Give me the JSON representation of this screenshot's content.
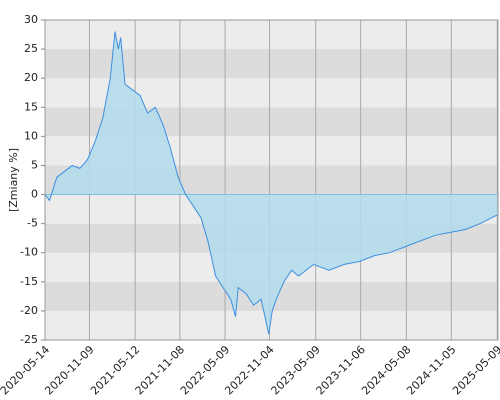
{
  "chart_data": {
    "type": "area",
    "y_label": "[Zmiany %]",
    "x": [
      "2020-05-14",
      "2020-06-01",
      "2020-07-01",
      "2020-08-01",
      "2020-09-01",
      "2020-10-01",
      "2020-11-01",
      "2020-12-01",
      "2021-01-01",
      "2021-02-01",
      "2021-02-20",
      "2021-03-05",
      "2021-03-15",
      "2021-04-01",
      "2021-05-01",
      "2021-06-01",
      "2021-07-01",
      "2021-08-01",
      "2021-09-01",
      "2021-10-01",
      "2021-11-01",
      "2021-12-01",
      "2022-01-01",
      "2022-02-01",
      "2022-03-01",
      "2022-04-01",
      "2022-05-01",
      "2022-06-01",
      "2022-06-20",
      "2022-07-01",
      "2022-08-01",
      "2022-09-01",
      "2022-10-01",
      "2022-11-01",
      "2022-11-15",
      "2022-12-01",
      "2023-01-01",
      "2023-02-01",
      "2023-03-01",
      "2023-05-01",
      "2023-07-01",
      "2023-09-01",
      "2023-11-01",
      "2024-01-01",
      "2024-03-01",
      "2024-05-01",
      "2024-07-01",
      "2024-09-01",
      "2024-11-01",
      "2025-01-01",
      "2025-03-01",
      "2025-05-09"
    ],
    "values": [
      0,
      -1,
      3,
      4,
      5,
      4.5,
      6,
      9,
      13,
      20,
      28,
      25,
      27,
      19,
      18,
      17,
      14,
      15,
      12,
      8,
      3,
      0,
      -2,
      -4,
      -8,
      -14,
      -16,
      -18,
      -21,
      -16,
      -17,
      -19,
      -18,
      -24,
      -20,
      -18,
      -15,
      -13,
      -14,
      -12,
      -13,
      -12,
      -11.5,
      -10.5,
      -10,
      -9,
      -8,
      -7,
      -6.5,
      -6,
      -5,
      -3.5
    ],
    "line_color": "#3d8fe0",
    "fill_color": "#b3dcec",
    "xlim": [
      "2020-05-14",
      "2025-05-12"
    ],
    "xticks": [
      "2020-05-14",
      "2020-11-09",
      "2021-05-12",
      "2021-11-08",
      "2022-05-09",
      "2022-11-04",
      "2023-05-09",
      "2023-11-06",
      "2024-05-08",
      "2024-11-05",
      "2025-05-09"
    ],
    "ylim": [
      -25,
      30
    ],
    "yticks": [
      -25,
      -20,
      -15,
      -10,
      -5,
      0,
      5,
      10,
      15,
      20,
      25,
      30
    ],
    "grid": true
  }
}
